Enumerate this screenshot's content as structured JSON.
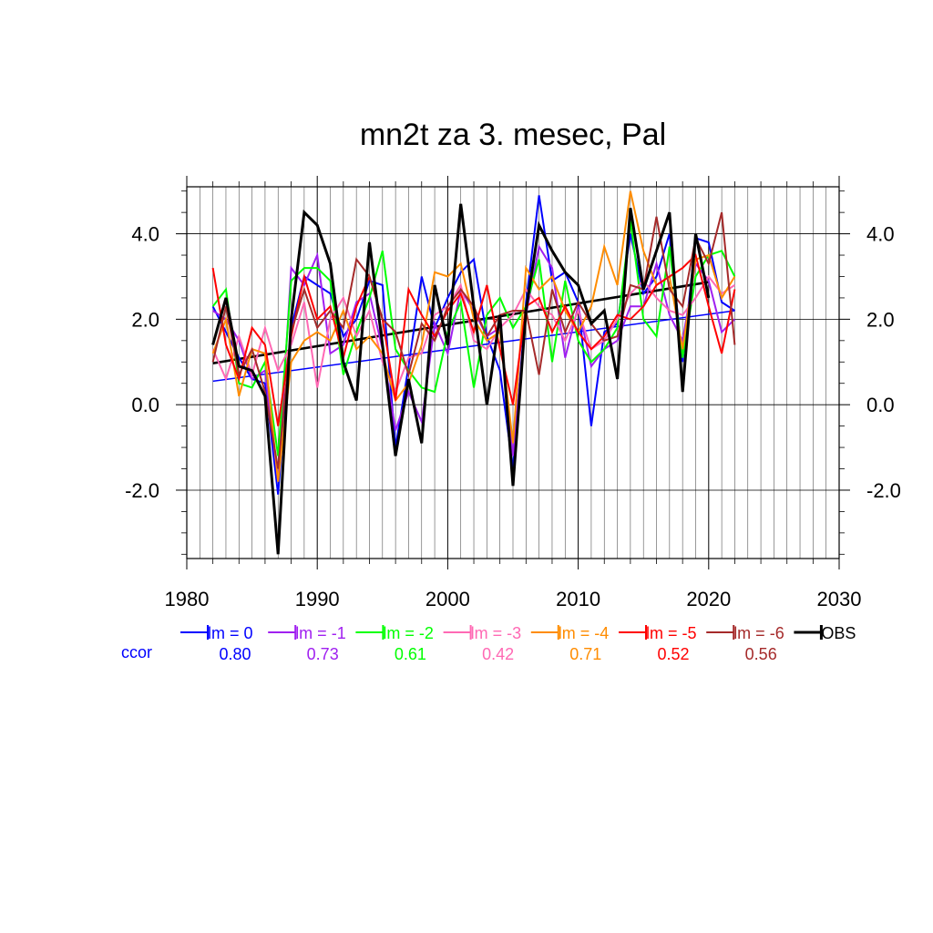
{
  "chart_data": {
    "type": "line",
    "title": "mn2t za 3. mesec, Pal",
    "xlabel": "",
    "ylabel": "",
    "xlim": [
      1980,
      2030
    ],
    "ylim": [
      -3.6,
      5.1
    ],
    "x_ticks": [
      1980,
      1990,
      2000,
      2010,
      2020,
      2030
    ],
    "y_ticks": [
      -2.0,
      0.0,
      2.0,
      4.0
    ],
    "grid": true,
    "legend_position": "bottom",
    "ccor_label": "ccor",
    "series": [
      {
        "name": "lm = 0",
        "color": "#0000ff",
        "ccor": "0.80",
        "x": [
          1982,
          1983,
          1984,
          1985,
          1986,
          1987,
          1988,
          1989,
          1990,
          1991,
          1992,
          1993,
          1994,
          1995,
          1996,
          1997,
          1998,
          1999,
          2000,
          2001,
          2002,
          2003,
          2004,
          2005,
          2006,
          2007,
          2008,
          2009,
          2010,
          2011,
          2012,
          2013,
          2014,
          2015,
          2016,
          2017,
          2018,
          2019,
          2020,
          2021,
          2022
        ],
        "y": [
          2.3,
          1.7,
          1.1,
          0.6,
          0.5,
          -2.1,
          1.8,
          3.0,
          2.8,
          2.6,
          1.6,
          2.0,
          2.9,
          2.8,
          -1.0,
          0.9,
          3.0,
          1.8,
          2.5,
          3.1,
          3.4,
          1.6,
          0.8,
          -1.5,
          2.4,
          4.9,
          2.9,
          3.1,
          2.4,
          -0.5,
          1.7,
          1.9,
          4.0,
          2.6,
          3.0,
          4.0,
          1.0,
          3.9,
          3.8,
          2.4,
          2.2
        ]
      },
      {
        "name": "lm = -1",
        "color": "#a020f0",
        "ccor": "0.73",
        "x": [
          1982,
          1983,
          1984,
          1985,
          1986,
          1987,
          1988,
          1989,
          1990,
          1991,
          1992,
          1993,
          1994,
          1995,
          1996,
          1997,
          1998,
          1999,
          2000,
          2001,
          2002,
          2003,
          2004,
          2005,
          2006,
          2007,
          2008,
          2009,
          2010,
          2011,
          2012,
          2013,
          2014,
          2015,
          2016,
          2017,
          2018,
          2019,
          2020,
          2021,
          2022
        ],
        "y": [
          2.2,
          2.0,
          1.5,
          0.6,
          0.8,
          -1.8,
          3.2,
          2.8,
          3.5,
          1.2,
          1.4,
          2.4,
          2.6,
          1.3,
          -0.6,
          0.3,
          -0.4,
          1.9,
          1.2,
          2.7,
          2.2,
          1.6,
          1.8,
          -1.2,
          2.1,
          3.7,
          3.2,
          1.1,
          2.3,
          0.9,
          1.3,
          1.5,
          2.3,
          2.3,
          3.3,
          2.1,
          1.5,
          3.3,
          2.9,
          1.7,
          2.0
        ]
      },
      {
        "name": "lm = -2",
        "color": "#00ff00",
        "ccor": "0.61",
        "x": [
          1982,
          1983,
          1984,
          1985,
          1986,
          1987,
          1988,
          1989,
          1990,
          1991,
          1992,
          1993,
          1994,
          1995,
          1996,
          1997,
          1998,
          1999,
          2000,
          2001,
          2002,
          2003,
          2004,
          2005,
          2006,
          2007,
          2008,
          2009,
          2010,
          2011,
          2012,
          2013,
          2014,
          2015,
          2016,
          2017,
          2018,
          2019,
          2020,
          2021,
          2022
        ],
        "y": [
          2.3,
          2.7,
          0.5,
          0.4,
          1.0,
          -1.2,
          2.9,
          3.2,
          3.2,
          2.9,
          0.7,
          1.7,
          2.5,
          3.6,
          1.3,
          0.8,
          0.4,
          0.3,
          1.7,
          2.4,
          0.4,
          2.1,
          2.5,
          1.8,
          2.3,
          3.4,
          1.0,
          2.9,
          1.5,
          1.0,
          1.3,
          1.8,
          4.3,
          2.0,
          1.6,
          3.7,
          1.1,
          3.0,
          3.5,
          3.6,
          3.0
        ]
      },
      {
        "name": "lm = -3",
        "color": "#ff69b4",
        "ccor": "0.42",
        "x": [
          1982,
          1983,
          1984,
          1985,
          1986,
          1987,
          1988,
          1989,
          1990,
          1991,
          1992,
          1993,
          1994,
          1995,
          1996,
          1997,
          1998,
          1999,
          2000,
          2001,
          2002,
          2003,
          2004,
          2005,
          2006,
          2007,
          2008,
          2009,
          2010,
          2011,
          2012,
          2013,
          2014,
          2015,
          2016,
          2017,
          2018,
          2019,
          2020,
          2021,
          2022
        ],
        "y": [
          1.3,
          0.6,
          1.6,
          0.7,
          1.8,
          0.8,
          1.4,
          2.4,
          0.4,
          2.0,
          2.5,
          1.6,
          2.2,
          1.0,
          0.3,
          1.1,
          1.2,
          2.1,
          2.3,
          2.8,
          1.5,
          1.3,
          1.8,
          2.1,
          2.7,
          2.3,
          2.1,
          1.5,
          2.2,
          1.3,
          1.5,
          2.0,
          2.6,
          2.9,
          2.5,
          2.2,
          2.1,
          2.5,
          3.0,
          2.6,
          2.8
        ]
      },
      {
        "name": "lm = -4",
        "color": "#ff8c00",
        "ccor": "0.71",
        "x": [
          1982,
          1983,
          1984,
          1985,
          1986,
          1987,
          1988,
          1989,
          1990,
          1991,
          1992,
          1993,
          1994,
          1995,
          1996,
          1997,
          1998,
          1999,
          2000,
          2001,
          2002,
          2003,
          2004,
          2005,
          2006,
          2007,
          2008,
          2009,
          2010,
          2011,
          2012,
          2013,
          2014,
          2015,
          2016,
          2017,
          2018,
          2019,
          2020,
          2021,
          2022
        ],
        "y": [
          1.2,
          2.0,
          0.2,
          1.3,
          1.2,
          -1.8,
          1.0,
          1.5,
          1.7,
          1.5,
          2.2,
          1.3,
          1.6,
          1.2,
          0.1,
          0.5,
          1.4,
          3.1,
          3.0,
          3.3,
          2.0,
          1.5,
          1.7,
          -0.9,
          3.2,
          2.7,
          3.0,
          2.2,
          1.7,
          2.3,
          3.7,
          2.8,
          5.0,
          3.6,
          2.8,
          3.0,
          1.3,
          3.4,
          3.5,
          2.5,
          3.0
        ]
      },
      {
        "name": "lm = -5",
        "color": "#ff0000",
        "ccor": "0.52",
        "x": [
          1982,
          1983,
          1984,
          1985,
          1986,
          1987,
          1988,
          1989,
          1990,
          1991,
          1992,
          1993,
          1994,
          1995,
          1996,
          1997,
          1998,
          1999,
          2000,
          2001,
          2002,
          2003,
          2004,
          2005,
          2006,
          2007,
          2008,
          2009,
          2010,
          2011,
          2012,
          2013,
          2014,
          2015,
          2016,
          2017,
          2018,
          2019,
          2020,
          2021,
          2022
        ],
        "y": [
          3.2,
          1.4,
          0.6,
          1.8,
          1.4,
          -0.5,
          1.6,
          3.0,
          2.0,
          2.3,
          1.1,
          2.3,
          3.0,
          2.0,
          0.1,
          2.7,
          2.1,
          1.6,
          2.2,
          2.6,
          1.7,
          2.8,
          1.3,
          0.0,
          2.3,
          2.5,
          1.7,
          2.3,
          1.7,
          1.3,
          1.6,
          2.1,
          2.0,
          2.3,
          2.8,
          3.0,
          3.2,
          3.5,
          2.3,
          1.2,
          2.7
        ]
      },
      {
        "name": "lm = -6",
        "color": "#a52a2a",
        "ccor": "0.56",
        "x": [
          1982,
          1983,
          1984,
          1985,
          1986,
          1987,
          1988,
          1989,
          1990,
          1991,
          1992,
          1993,
          1994,
          1995,
          1996,
          1997,
          1998,
          1999,
          2000,
          2001,
          2002,
          2003,
          2004,
          2005,
          2006,
          2007,
          2008,
          2009,
          2010,
          2011,
          2012,
          2013,
          2014,
          2015,
          2016,
          2017,
          2018,
          2019,
          2020,
          2021,
          2022
        ],
        "y": [
          1.0,
          2.3,
          0.7,
          1.3,
          0.3,
          -1.5,
          1.7,
          2.7,
          1.8,
          2.2,
          1.8,
          3.4,
          3.0,
          2.0,
          1.7,
          0.7,
          1.9,
          1.5,
          2.3,
          2.7,
          2.3,
          1.6,
          2.1,
          2.2,
          2.2,
          0.7,
          2.7,
          1.7,
          2.4,
          1.9,
          1.5,
          1.6,
          2.8,
          2.7,
          4.4,
          2.7,
          2.3,
          3.9,
          3.3,
          4.5,
          1.4
        ]
      },
      {
        "name": "OBS",
        "color": "#000000",
        "ccor": "",
        "x": [
          1982,
          1983,
          1984,
          1985,
          1986,
          1987,
          1988,
          1989,
          1990,
          1991,
          1992,
          1993,
          1994,
          1995,
          1996,
          1997,
          1998,
          1999,
          2000,
          2001,
          2002,
          2003,
          2004,
          2005,
          2006,
          2007,
          2008,
          2009,
          2010,
          2011,
          2012,
          2013,
          2014,
          2015,
          2016,
          2017,
          2018,
          2019,
          2020
        ],
        "y": [
          1.4,
          2.5,
          0.9,
          0.8,
          0.2,
          -3.5,
          2.0,
          4.5,
          4.2,
          3.3,
          1.0,
          0.1,
          3.8,
          1.4,
          -1.2,
          0.6,
          -0.9,
          2.8,
          1.4,
          4.7,
          2.3,
          0.0,
          2.1,
          -1.9,
          2.2,
          4.2,
          3.6,
          3.1,
          2.8,
          1.9,
          2.2,
          0.6,
          4.6,
          2.7,
          3.6,
          4.5,
          0.3,
          4.0,
          2.5
        ]
      }
    ],
    "trend_lines": [
      {
        "series": "lm = 0",
        "color": "#0000ff",
        "x": [
          1982,
          2022
        ],
        "y": [
          0.55,
          2.2
        ]
      },
      {
        "series": "OBS",
        "color": "#000000",
        "x": [
          1982,
          2020
        ],
        "y": [
          0.97,
          2.87
        ]
      }
    ]
  }
}
